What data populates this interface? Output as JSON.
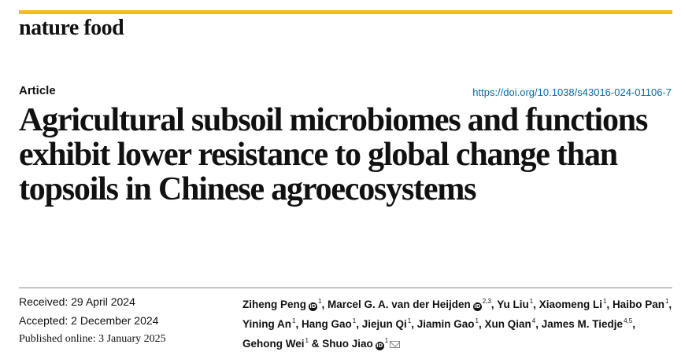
{
  "journal": {
    "name": "nature food"
  },
  "article": {
    "type": "Article",
    "doi": "https://doi.org/10.1038/s43016-024-01106-7",
    "title": "Agricultural subsoil microbiomes and functions exhibit lower resistance to global change than topsoils in Chinese agroecosystems"
  },
  "dates": {
    "received": "Received: 29 April 2024",
    "accepted": "Accepted: 2 December 2024",
    "published": "Published online: 3 January 2025"
  },
  "authors": [
    {
      "name": "Ziheng Peng",
      "sup": "1",
      "orcid": true,
      "sep": ","
    },
    {
      "name": "Marcel G. A. van der Heijden",
      "sup": "2,3",
      "orcid": true,
      "sep": ","
    },
    {
      "name": "Yu Liu",
      "sup": "1",
      "orcid": false,
      "sep": ","
    },
    {
      "name": "Xiaomeng Li",
      "sup": "1",
      "orcid": false,
      "sep": ","
    },
    {
      "name": "Haibo Pan",
      "sup": "1",
      "orcid": false,
      "sep": ","
    },
    {
      "name": "Yining An",
      "sup": "1",
      "orcid": false,
      "sep": ","
    },
    {
      "name": "Hang Gao",
      "sup": "1",
      "orcid": false,
      "sep": ","
    },
    {
      "name": "Jiejun Qi",
      "sup": "1",
      "orcid": false,
      "sep": ","
    },
    {
      "name": "Jiamin Gao",
      "sup": "1",
      "orcid": false,
      "sep": ","
    },
    {
      "name": "Xun Qian",
      "sup": "4",
      "orcid": false,
      "sep": ","
    },
    {
      "name": "James M. Tiedje",
      "sup": "4,5",
      "orcid": false,
      "sep": ","
    },
    {
      "name": "Gehong Wei",
      "sup": "1",
      "orcid": false,
      "sep": " &"
    },
    {
      "name": "Shuo Jiao",
      "sup": "1",
      "orcid": true,
      "sep": "",
      "mail": true
    }
  ],
  "icons": {
    "orcid": "orcid-icon",
    "mail": "mail-icon",
    "orcid_glyph": "iD"
  },
  "colors": {
    "accent_rule": "#f2be1a",
    "link": "#0a6aa1",
    "text": "#111111"
  }
}
